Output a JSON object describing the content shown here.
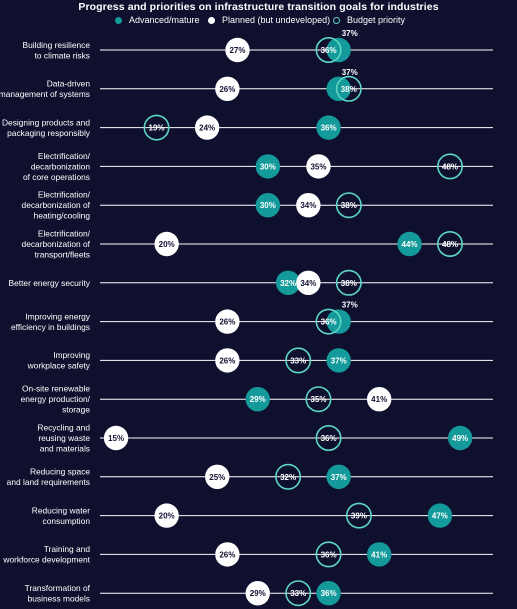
{
  "chart_data": {
    "type": "dot",
    "title": "Progress and priorities on infrastructure transition goals for industries",
    "legend_placement": "top",
    "unit": "%",
    "xlim": [
      0,
      60
    ],
    "grid": false,
    "series": [
      {
        "key": "advanced",
        "name": "Advanced/mature",
        "color": "#149a9a",
        "style": "filled"
      },
      {
        "key": "planned",
        "name": "Planned (but undeveloped)",
        "color": "#ffffff",
        "style": "filled"
      },
      {
        "key": "budget",
        "name": "Budget priority",
        "color": "#5dd6c4",
        "style": "outline"
      }
    ],
    "categories": [
      {
        "label": [
          "Building resilience",
          "to climate risks"
        ],
        "advanced": 37,
        "planned": 27,
        "budget": 36
      },
      {
        "label": [
          "Data-driven",
          "management of systems"
        ],
        "advanced": 37,
        "planned": 26,
        "budget": 38
      },
      {
        "label": [
          "Designing products and",
          "packaging responsibly"
        ],
        "advanced": 36,
        "planned": 24,
        "budget": 19
      },
      {
        "label": [
          "Electrification/",
          "decarbonization",
          "of core operations"
        ],
        "advanced": 30,
        "planned": 35,
        "budget": 48
      },
      {
        "label": [
          "Electrification/",
          "decarbonization of",
          "heating/cooling"
        ],
        "advanced": 30,
        "planned": 34,
        "budget": 38
      },
      {
        "label": [
          "Electrification/",
          "decarbonization of",
          "transport/fleets"
        ],
        "advanced": 44,
        "planned": 20,
        "budget": 48
      },
      {
        "label": [
          "Better energy security"
        ],
        "advanced": 32,
        "planned": 34,
        "budget": 38
      },
      {
        "label": [
          "Improving energy",
          "efficiency in buildings"
        ],
        "advanced": 37,
        "planned": 26,
        "budget": 36
      },
      {
        "label": [
          "Improving",
          "workplace safety"
        ],
        "advanced": 37,
        "planned": 26,
        "budget": 33
      },
      {
        "label": [
          "On-site renewable",
          "energy production/",
          "storage"
        ],
        "advanced": 29,
        "planned": 41,
        "budget": 35
      },
      {
        "label": [
          "Recycling and",
          "reusing waste",
          "and materials"
        ],
        "advanced": 49,
        "planned": 15,
        "budget": 36
      },
      {
        "label": [
          "Reducing space",
          "and land requirements"
        ],
        "advanced": 37,
        "planned": 25,
        "budget": 32
      },
      {
        "label": [
          "Reducing water",
          "consumption"
        ],
        "advanced": 47,
        "planned": 20,
        "budget": 39
      },
      {
        "label": [
          "Training and",
          "workforce development"
        ],
        "advanced": 41,
        "planned": 26,
        "budget": 36
      },
      {
        "label": [
          "Transformation of",
          "business models"
        ],
        "advanced": 36,
        "planned": 29,
        "budget": 33
      }
    ],
    "outside_labels": [
      {
        "category": 0,
        "series": "advanced"
      },
      {
        "category": 1,
        "series": "advanced"
      },
      {
        "category": 7,
        "series": "advanced"
      }
    ]
  }
}
